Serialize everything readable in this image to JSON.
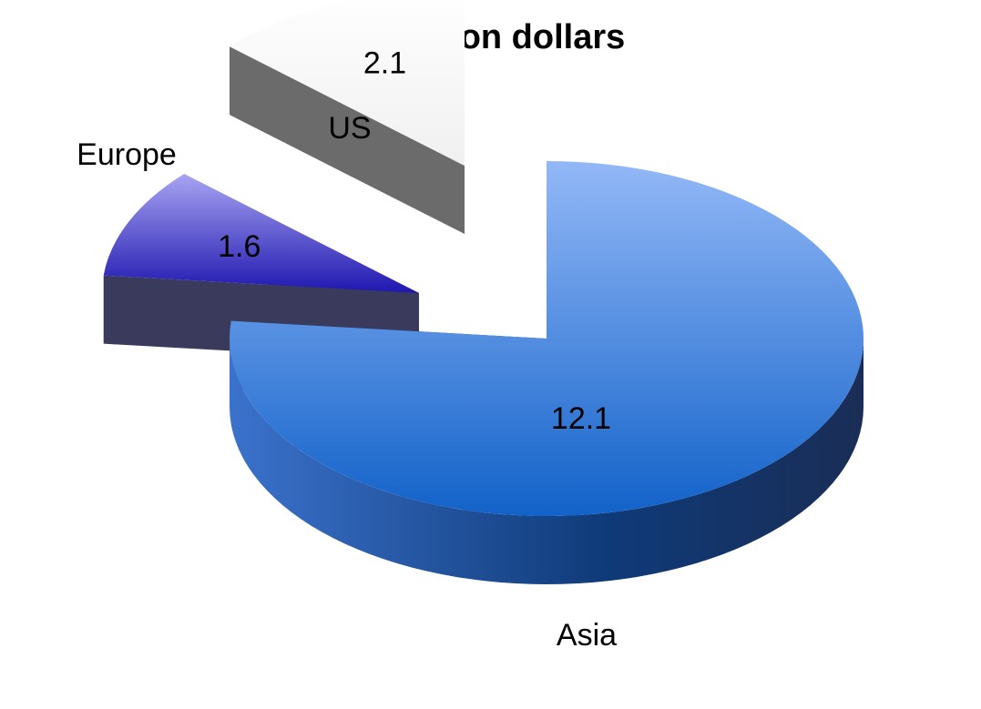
{
  "chart_data": {
    "type": "pie",
    "title": "In Billion dollars",
    "categories": [
      "Asia",
      "Europe",
      "US"
    ],
    "values": [
      12.1,
      1.6,
      2.1
    ],
    "value_labels": [
      "12.1",
      "1.6",
      "2.1"
    ],
    "exploded": true,
    "style": "3d",
    "legend": "none",
    "colors": [
      "#2f6fd6",
      "#3a2fc4",
      "#f5f5f5"
    ],
    "side_colors": [
      "#173d7a",
      "#3a3a5c",
      "#6b6b6b"
    ]
  }
}
